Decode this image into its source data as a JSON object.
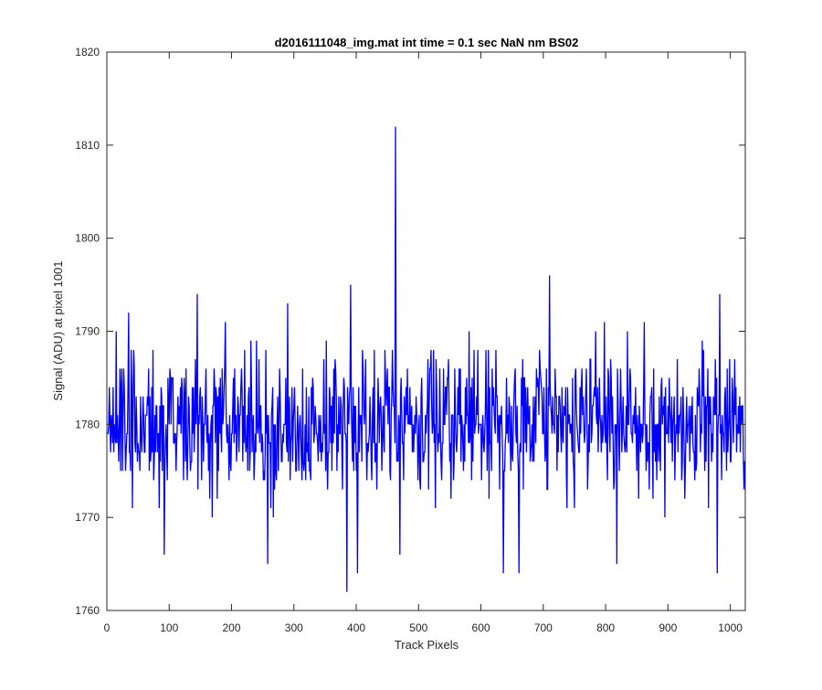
{
  "chart_data": {
    "type": "line",
    "title": "d2016111048_img.mat int time = 0.1 sec  NaN nm BS02",
    "xlabel": "Track Pixels",
    "ylabel": "Signal (ADU) at pixel 1001",
    "xlim": [
      0,
      1024
    ],
    "ylim": [
      1760,
      1820
    ],
    "xticks": [
      0,
      100,
      200,
      300,
      400,
      500,
      600,
      700,
      800,
      900,
      1000
    ],
    "yticks": [
      1760,
      1770,
      1780,
      1790,
      1800,
      1810,
      1820
    ],
    "grid": false,
    "legend": "none",
    "line_color": "#0000ff",
    "series": [
      {
        "noise_mean": 1780,
        "noise_typical_range": [
          1770,
          1790
        ],
        "y_at_1": 1779,
        "peaks": [
          {
            "x": 463,
            "y": 1812
          },
          {
            "x": 391,
            "y": 1795
          },
          {
            "x": 710,
            "y": 1796
          },
          {
            "x": 145,
            "y": 1794
          },
          {
            "x": 983,
            "y": 1794
          },
          {
            "x": 35,
            "y": 1792
          },
          {
            "x": 290,
            "y": 1793
          }
        ],
        "troughs": [
          {
            "x": 385,
            "y": 1762
          },
          {
            "x": 402,
            "y": 1764
          },
          {
            "x": 636,
            "y": 1764
          },
          {
            "x": 661,
            "y": 1764
          },
          {
            "x": 979,
            "y": 1764
          },
          {
            "x": 92,
            "y": 1766
          },
          {
            "x": 258,
            "y": 1765
          },
          {
            "x": 818,
            "y": 1765
          },
          {
            "x": 470,
            "y": 1766
          }
        ]
      }
    ]
  }
}
